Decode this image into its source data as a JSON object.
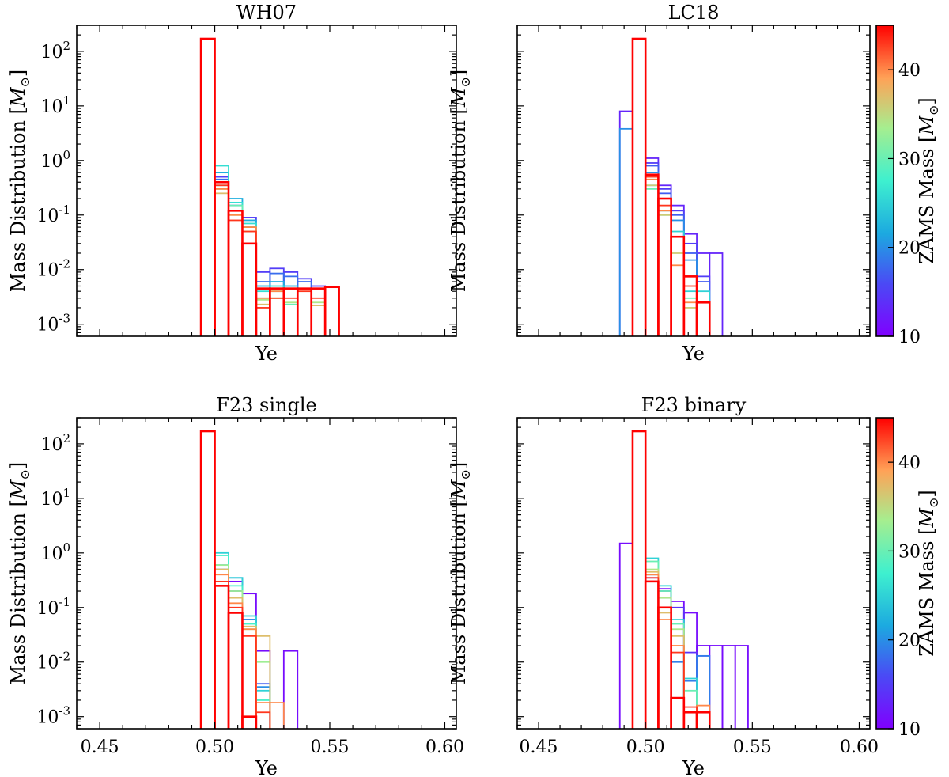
{
  "figure": {
    "colorbar": {
      "label": "ZAMS Mass [M⊙]",
      "ticks": [
        10,
        20,
        30,
        40
      ],
      "range": [
        10,
        45
      ],
      "colormap": "rainbow"
    }
  },
  "chart_data": [
    {
      "type": "histogram-step",
      "title": "WH07",
      "xlabel": "Ye",
      "ylabel": "Mass Distribution [M⊙]",
      "xscale": "linear",
      "yscale": "log",
      "xlim": [
        0.44,
        0.605
      ],
      "ylim": [
        0.0006,
        300
      ],
      "xticks": [],
      "ytick_labels": [
        "10^-3",
        "10^-2",
        "10^-1",
        "10^0",
        "10^1",
        "10^2"
      ],
      "bin_edges": [
        0.494,
        0.5,
        0.506,
        0.512,
        0.518,
        0.524,
        0.53,
        0.536,
        0.542,
        0.548,
        0.554
      ],
      "series": [
        {
          "zams": 15,
          "values": [
            0,
            0.5,
            0.15,
            0.09,
            0.009,
            0.0105,
            0.009,
            0.0068,
            0.005,
            0
          ]
        },
        {
          "zams": 18,
          "values": [
            0,
            0.45,
            0.12,
            0.06,
            0.006,
            0.0085,
            0.0075,
            0.006,
            0,
            0
          ]
        },
        {
          "zams": 22,
          "values": [
            0,
            0.6,
            0.2,
            0.08,
            0.005,
            0.006,
            0.005,
            0.0045,
            0,
            0
          ]
        },
        {
          "zams": 26,
          "values": [
            0,
            0.8,
            0.17,
            0.07,
            0.004,
            0.005,
            0,
            0,
            0,
            0
          ]
        },
        {
          "zams": 30,
          "values": [
            0,
            0.35,
            0.15,
            0.06,
            0.003,
            0.004,
            0.0023,
            0,
            0,
            0
          ]
        },
        {
          "zams": 34,
          "values": [
            0,
            0.3,
            0.1,
            0.05,
            0.0028,
            0.003,
            0.0025,
            0,
            0.0025,
            0
          ]
        },
        {
          "zams": 37,
          "values": [
            0,
            0.25,
            0.12,
            0.05,
            0.0023,
            0.003,
            0,
            0,
            0.0022,
            0
          ]
        },
        {
          "zams": 40,
          "values": [
            0,
            0.3,
            0.1,
            0.06,
            0.003,
            0.004,
            0,
            0,
            0,
            0
          ]
        },
        {
          "zams": 43,
          "values": [
            0,
            0.35,
            0.08,
            0.05,
            0.002,
            0.003,
            0.003,
            0.004,
            0.003,
            0
          ]
        },
        {
          "zams": 45,
          "values": [
            170,
            0.4,
            0.12,
            0.03,
            0.0045,
            0.0045,
            0.0045,
            0.0045,
            0.0045,
            0.0048
          ]
        }
      ]
    },
    {
      "type": "histogram-step",
      "title": "LC18",
      "xlabel": "Ye",
      "ylabel": "Mass Distribution [M⊙]",
      "xscale": "linear",
      "yscale": "log",
      "xlim": [
        0.44,
        0.605
      ],
      "ylim": [
        0.0006,
        300
      ],
      "xticks": [],
      "ytick_labels": [],
      "bin_edges": [
        0.488,
        0.494,
        0.5,
        0.506,
        0.512,
        0.518,
        0.524,
        0.53,
        0.536
      ],
      "series": [
        {
          "zams": 13,
          "values": [
            8,
            0,
            1.1,
            0.35,
            0.15,
            0.045,
            0.02,
            0.02
          ]
        },
        {
          "zams": 15,
          "values": [
            0,
            0,
            0.9,
            0.3,
            0.12,
            0.03,
            0.0075,
            0
          ]
        },
        {
          "zams": 17,
          "values": [
            0,
            0,
            0.8,
            0.25,
            0.1,
            0.02,
            0.006,
            0
          ]
        },
        {
          "zams": 20,
          "values": [
            3.8,
            0,
            0.6,
            0.2,
            0.08,
            0.015,
            0,
            0
          ]
        },
        {
          "zams": 25,
          "values": [
            0,
            0,
            0.35,
            0.12,
            0.05,
            0.004,
            0.004,
            0
          ]
        },
        {
          "zams": 30,
          "values": [
            0,
            0,
            0.3,
            0.1,
            0.04,
            0.003,
            0,
            0
          ]
        },
        {
          "zams": 36,
          "values": [
            0,
            0,
            0.35,
            0.1,
            0.02,
            0.002,
            0,
            0
          ]
        },
        {
          "zams": 40,
          "values": [
            0,
            0,
            0.45,
            0.12,
            0.012,
            0.0025,
            0,
            0
          ]
        },
        {
          "zams": 43,
          "values": [
            0,
            0,
            0.5,
            0.15,
            0.04,
            0.005,
            0,
            0
          ]
        },
        {
          "zams": 45,
          "values": [
            0,
            170,
            0.55,
            0.2,
            0.04,
            0.0075,
            0.0025,
            0
          ]
        }
      ]
    },
    {
      "type": "histogram-step",
      "title": "F23 single",
      "xlabel": "Ye",
      "ylabel": "Mass Distribution [M⊙]",
      "xscale": "linear",
      "yscale": "log",
      "xlim": [
        0.44,
        0.605
      ],
      "ylim": [
        0.0006,
        300
      ],
      "xticks": [
        "0.45",
        "0.50",
        "0.55",
        "0.60"
      ],
      "ytick_labels": [
        "10^-3",
        "10^-2",
        "10^-1",
        "10^0",
        "10^1",
        "10^2"
      ],
      "bin_edges": [
        0.494,
        0.5,
        0.506,
        0.512,
        0.518,
        0.524,
        0.53,
        0.536
      ],
      "series": [
        {
          "zams": 11,
          "values": [
            0,
            0,
            0.3,
            0.18,
            0.016,
            0,
            0.016
          ]
        },
        {
          "zams": 17,
          "values": [
            0,
            0.5,
            0.2,
            0.06,
            0.004,
            0,
            0
          ]
        },
        {
          "zams": 20,
          "values": [
            0,
            0.6,
            0.35,
            0.06,
            0.0035,
            0,
            0
          ]
        },
        {
          "zams": 25,
          "values": [
            0,
            1.0,
            0.35,
            0.07,
            0.003,
            0,
            0
          ]
        },
        {
          "zams": 28,
          "values": [
            0,
            0.9,
            0.25,
            0.05,
            0.002,
            0,
            0
          ]
        },
        {
          "zams": 33,
          "values": [
            0,
            0.6,
            0.2,
            0.04,
            0.01,
            0,
            0
          ]
        },
        {
          "zams": 37,
          "values": [
            0,
            0.5,
            0.15,
            0.045,
            0.03,
            0,
            0
          ]
        },
        {
          "zams": 40,
          "values": [
            0,
            0.4,
            0.12,
            0.04,
            0.0018,
            0.0018,
            0
          ]
        },
        {
          "zams": 43,
          "values": [
            0,
            0.3,
            0.1,
            0.03,
            0.0012,
            0,
            0
          ]
        },
        {
          "zams": 45,
          "values": [
            170,
            0.25,
            0.08,
            0.001,
            0,
            0,
            0
          ]
        }
      ]
    },
    {
      "type": "histogram-step",
      "title": "F23 binary",
      "xlabel": "Ye",
      "ylabel": "Mass Distribution [M⊙]",
      "xscale": "linear",
      "yscale": "log",
      "xlim": [
        0.44,
        0.605
      ],
      "ylim": [
        0.0006,
        300
      ],
      "xticks": [
        "0.45",
        "0.50",
        "0.55",
        "0.60"
      ],
      "ytick_labels": [],
      "bin_edges": [
        0.488,
        0.494,
        0.5,
        0.506,
        0.512,
        0.518,
        0.524,
        0.53,
        0.536,
        0.542,
        0.548
      ],
      "series": [
        {
          "zams": 11,
          "values": [
            1.5,
            0,
            0.3,
            0.22,
            0.13,
            0.08,
            0.02,
            0.02,
            0.02,
            0.02
          ]
        },
        {
          "zams": 14,
          "values": [
            0,
            0,
            0.35,
            0.2,
            0.1,
            0.015,
            0.013,
            0,
            0,
            0
          ]
        },
        {
          "zams": 19,
          "values": [
            0,
            0,
            0.4,
            0.15,
            0.01,
            0.0045,
            0.013,
            0,
            0,
            0
          ]
        },
        {
          "zams": 25,
          "values": [
            0,
            0,
            0.8,
            0.25,
            0.06,
            0.005,
            0,
            0,
            0,
            0
          ]
        },
        {
          "zams": 30,
          "values": [
            0,
            0,
            0.7,
            0.2,
            0.05,
            0.003,
            0,
            0,
            0,
            0
          ]
        },
        {
          "zams": 34,
          "values": [
            0,
            0,
            0.5,
            0.15,
            0.04,
            0,
            0,
            0,
            0,
            0
          ]
        },
        {
          "zams": 37,
          "values": [
            0,
            0,
            0.45,
            0.08,
            0.03,
            0,
            0,
            0,
            0,
            0
          ]
        },
        {
          "zams": 40,
          "values": [
            0,
            0,
            0.4,
            0.06,
            0.02,
            0,
            0.0016,
            0,
            0,
            0
          ]
        },
        {
          "zams": 43,
          "values": [
            0,
            0,
            0.35,
            0.1,
            0.015,
            0.0015,
            0,
            0,
            0,
            0
          ]
        },
        {
          "zams": 45,
          "values": [
            0,
            170,
            0.3,
            0.1,
            0.0022,
            0.0012,
            0.0012,
            0,
            0,
            0
          ]
        }
      ]
    }
  ]
}
